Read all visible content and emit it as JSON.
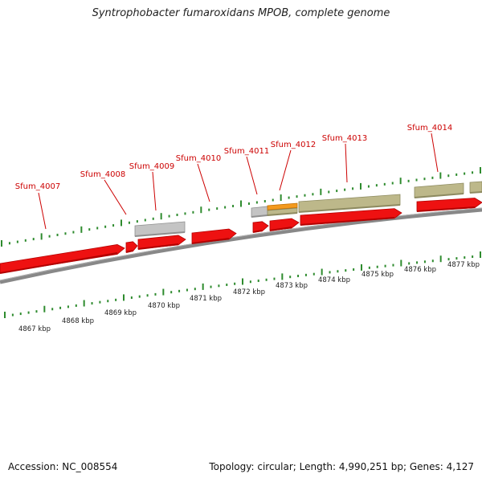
{
  "title": "Syntrophobacter fumaroxidans MPOB, complete genome",
  "footer": {
    "accession": "Accession: NC_008554",
    "summary": "Topology: circular; Length: 4,990,251 bp; Genes: 4,127"
  },
  "colors": {
    "gene_red": "#ee1111",
    "gene_olive": "#bdb88a",
    "gene_grey": "#c4c4c4",
    "gene_orange": "#f39a1e",
    "tick_green": "#2e8b2e",
    "label_red": "#cc0000",
    "backbone": "#888888"
  },
  "genes": [
    {
      "id": "g4007",
      "name": "Sfum_4007"
    },
    {
      "id": "g4008",
      "name": "Sfum_4008"
    },
    {
      "id": "g4009",
      "name": "Sfum_4009"
    },
    {
      "id": "g4010",
      "name": "Sfum_4010"
    },
    {
      "id": "g4011",
      "name": "Sfum_4011"
    },
    {
      "id": "g4012",
      "name": "Sfum_4012"
    },
    {
      "id": "g4013",
      "name": "Sfum_4013"
    },
    {
      "id": "g4014",
      "name": "Sfum_4014"
    }
  ],
  "scale": {
    "unit": "kbp",
    "labels": [
      "4867 kbp",
      "4868 kbp",
      "4869 kbp",
      "4870 kbp",
      "4871 kbp",
      "4872 kbp",
      "4873 kbp",
      "4874 kbp",
      "4875 kbp",
      "4876 kbp",
      "4877 kbp"
    ]
  }
}
